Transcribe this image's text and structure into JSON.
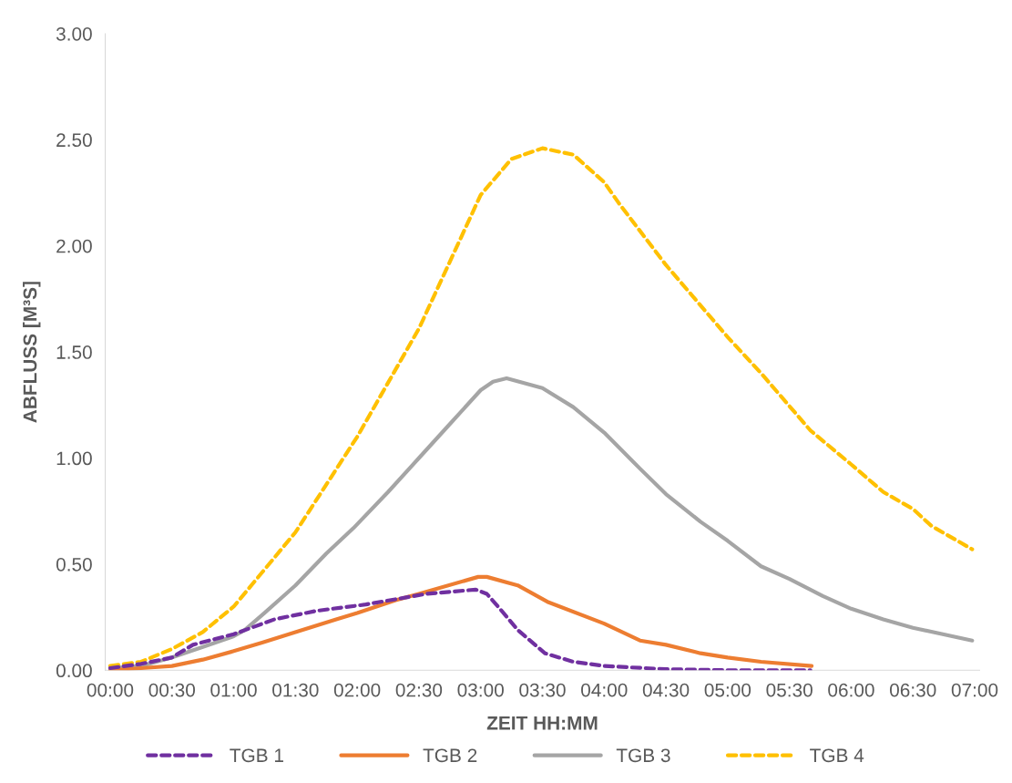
{
  "chart_data": {
    "type": "line",
    "xlabel": "ZEIT HH:MM",
    "ylabel": "ABFLUSS [M³S]",
    "xlim": [
      -0.04,
      7.04
    ],
    "ylim": [
      0,
      3
    ],
    "xticks": [
      {
        "value": 0,
        "label": "00:00"
      },
      {
        "value": 0.5,
        "label": "00:30"
      },
      {
        "value": 1,
        "label": "01:00"
      },
      {
        "value": 1.5,
        "label": "01:30"
      },
      {
        "value": 2,
        "label": "02:00"
      },
      {
        "value": 2.5,
        "label": "02:30"
      },
      {
        "value": 3,
        "label": "03:00"
      },
      {
        "value": 3.5,
        "label": "03:30"
      },
      {
        "value": 4,
        "label": "04:00"
      },
      {
        "value": 4.5,
        "label": "04:30"
      },
      {
        "value": 5,
        "label": "05:00"
      },
      {
        "value": 5.5,
        "label": "05:30"
      },
      {
        "value": 6,
        "label": "06:00"
      },
      {
        "value": 6.5,
        "label": "06:30"
      },
      {
        "value": 7,
        "label": "07:00"
      }
    ],
    "yticks": [
      {
        "value": 0,
        "label": "0.00"
      },
      {
        "value": 0.5,
        "label": "0.50"
      },
      {
        "value": 1,
        "label": "1.00"
      },
      {
        "value": 1.5,
        "label": "1.50"
      },
      {
        "value": 2,
        "label": "2.00"
      },
      {
        "value": 2.5,
        "label": "2.50"
      },
      {
        "value": 3,
        "label": "3.00"
      }
    ],
    "grid": false,
    "legend": "bottom",
    "marker": "none",
    "series": [
      {
        "name": "TGB 1",
        "color": "#7030a0",
        "line_style": "dashed",
        "x": [
          0,
          0.25,
          0.5,
          0.67,
          1,
          1.33,
          1.67,
          2.07,
          2.56,
          2.96,
          3.05,
          3.17,
          3.3,
          3.52,
          3.75,
          4,
          4.5,
          5,
          5.67
        ],
        "values": [
          0.01,
          0.03,
          0.06,
          0.12,
          0.17,
          0.24,
          0.28,
          0.31,
          0.36,
          0.38,
          0.36,
          0.28,
          0.19,
          0.08,
          0.04,
          0.02,
          0.005,
          0,
          0
        ]
      },
      {
        "name": "TGB 2",
        "color": "#ed7d31",
        "line_style": "solid",
        "x": [
          0,
          0.25,
          0.5,
          0.75,
          1,
          1.23,
          1.5,
          1.83,
          2,
          2.31,
          2.5,
          2.98,
          3.05,
          3.3,
          3.55,
          4,
          4.29,
          4.5,
          4.78,
          5,
          5.27,
          5.68
        ],
        "values": [
          0,
          0.01,
          0.02,
          0.05,
          0.09,
          0.13,
          0.18,
          0.24,
          0.27,
          0.33,
          0.36,
          0.44,
          0.44,
          0.4,
          0.32,
          0.22,
          0.14,
          0.12,
          0.08,
          0.06,
          0.04,
          0.02
        ]
      },
      {
        "name": "TGB 3",
        "color": "#a5a5a5",
        "line_style": "solid",
        "x": [
          0,
          0.25,
          0.5,
          0.75,
          1,
          1.09,
          1.25,
          1.5,
          1.75,
          1.97,
          2.25,
          2.5,
          2.75,
          3,
          3.1,
          3.21,
          3.5,
          3.75,
          4,
          4.29,
          4.5,
          4.78,
          5,
          5.27,
          5.5,
          5.77,
          6,
          6.26,
          6.5,
          6.98
        ],
        "values": [
          0.01,
          0.02,
          0.06,
          0.11,
          0.16,
          0.19,
          0.27,
          0.4,
          0.55,
          0.67,
          0.84,
          1.0,
          1.16,
          1.32,
          1.36,
          1.376,
          1.33,
          1.24,
          1.12,
          0.95,
          0.83,
          0.7,
          0.61,
          0.49,
          0.43,
          0.35,
          0.29,
          0.24,
          0.2,
          0.14
        ]
      },
      {
        "name": "TGB 4",
        "color": "#ffc000",
        "line_style": "dashed",
        "x": [
          0,
          0.25,
          0.5,
          0.75,
          1,
          1.5,
          2,
          2.5,
          3,
          3.25,
          3.5,
          3.75,
          4,
          4.12,
          4.5,
          5,
          5.27,
          5.67,
          6,
          6.26,
          6.5,
          6.65,
          6.98
        ],
        "values": [
          0.02,
          0.04,
          0.1,
          0.18,
          0.3,
          0.65,
          1.1,
          1.61,
          2.24,
          2.41,
          2.46,
          2.43,
          2.3,
          2.2,
          1.91,
          1.57,
          1.4,
          1.13,
          0.97,
          0.84,
          0.76,
          0.68,
          0.57
        ]
      }
    ]
  }
}
